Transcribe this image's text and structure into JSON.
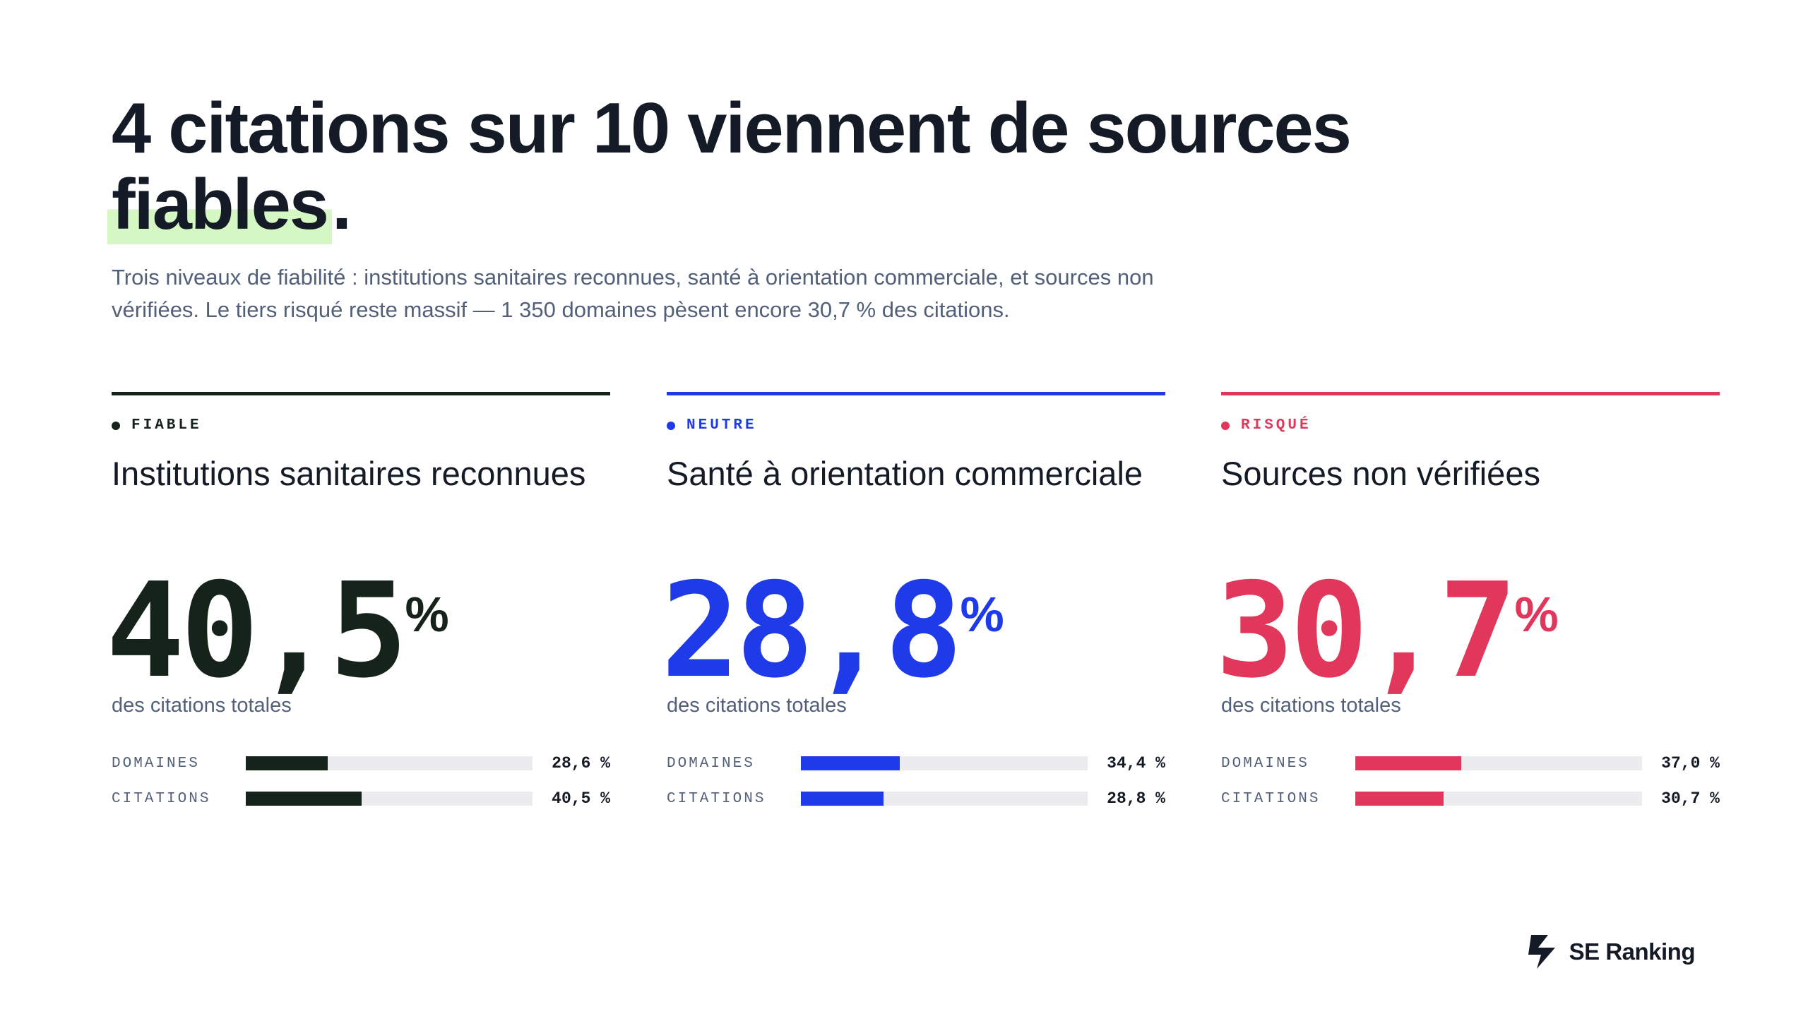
{
  "headline": {
    "line1": "4 citations sur 10 viennent de sources",
    "highlight": "fiables",
    "end": "."
  },
  "subtitle": "Trois niveaux de fiabilité : institutions sanitaires reconnues, santé à orientation commerciale, et sources non vérifiées. Le tiers risqué reste massif — 1 350 domaines pèsent encore 30,7 % des citations.",
  "colors": {
    "fiable": "#16231a",
    "neutre": "#1f3ae8",
    "risque": "#e0375b",
    "highlight": "#d4f7c4",
    "track": "#ececee"
  },
  "chart_data": {
    "type": "bar",
    "categories": [
      "DOMAINES",
      "CITATIONS"
    ],
    "series": [
      {
        "name": "Institutions sanitaires reconnues",
        "values": [
          28.6,
          40.5
        ]
      },
      {
        "name": "Santé à orientation commerciale",
        "values": [
          34.4,
          28.8
        ]
      },
      {
        "name": "Sources non vérifiées",
        "values": [
          37.0,
          30.7
        ]
      }
    ],
    "xlim": [
      0,
      100
    ],
    "grid": false
  },
  "cards": [
    {
      "tag": "FIABLE",
      "name": "Institutions sanitaires reconnues",
      "big_number": "40,5",
      "unit": "%",
      "caption": "des citations totales",
      "metrics": [
        {
          "label": "DOMAINES",
          "value": 28.6,
          "value_text": "28,6 %"
        },
        {
          "label": "CITATIONS",
          "value": 40.5,
          "value_text": "40,5 %"
        }
      ]
    },
    {
      "tag": "NEUTRE",
      "name": "Santé à orientation commerciale",
      "big_number": "28,8",
      "unit": "%",
      "caption": "des citations totales",
      "metrics": [
        {
          "label": "DOMAINES",
          "value": 34.4,
          "value_text": "34,4 %"
        },
        {
          "label": "CITATIONS",
          "value": 28.8,
          "value_text": "28,8 %"
        }
      ]
    },
    {
      "tag": "RISQUÉ",
      "name": "Sources non vérifiées",
      "big_number": "30,7",
      "unit": "%",
      "caption": "des citations totales",
      "metrics": [
        {
          "label": "DOMAINES",
          "value": 37.0,
          "value_text": "37,0 %"
        },
        {
          "label": "CITATIONS",
          "value": 30.7,
          "value_text": "30,7 %"
        }
      ]
    }
  ],
  "brand": {
    "name": "SE Ranking",
    "icon": "se-ranking-logo-icon"
  }
}
